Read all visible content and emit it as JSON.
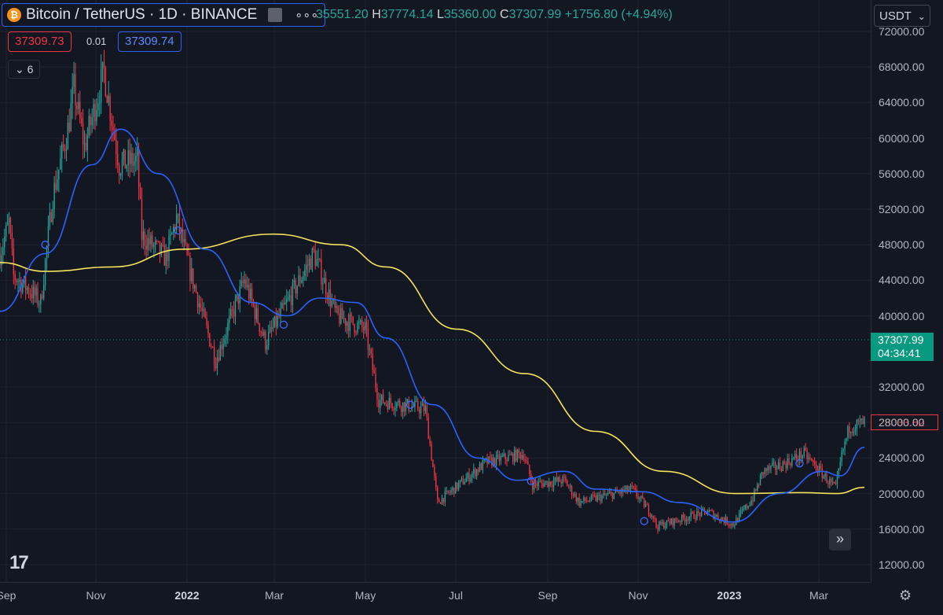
{
  "header": {
    "title": "Bitcoin / TetherUS · 1D · BINANCE",
    "coin_symbol": "₿",
    "more": "∘∘∘",
    "ohlc": {
      "o_label": "",
      "o": "35551.20",
      "h_label": "H",
      "h": "37774.14",
      "l_label": "L",
      "l": "35360.00",
      "c_label": "C",
      "c": "37307.99",
      "change": "+1756.80 (+4.94%)"
    }
  },
  "trade": {
    "sell": "37309.73",
    "spread": "0.01",
    "buy": "37309.74"
  },
  "indicators_count": "6",
  "currency": "USDT",
  "price_scale": {
    "labels": [
      "72000.00",
      "68000.00",
      "64000.00",
      "60000.00",
      "56000.00",
      "52000.00",
      "48000.00",
      "44000.00",
      "40000.00",
      "32000.00",
      "28000.00",
      "24000.00",
      "20000.00",
      "16000.00",
      "12000.00"
    ]
  },
  "last_price": {
    "price": "37307.99",
    "countdown": "04:34:41"
  },
  "alert_price": "28033.82",
  "time_scale": {
    "labels": [
      "Sep",
      "Nov",
      "2022",
      "Mar",
      "May",
      "Jul",
      "Sep",
      "Nov",
      "2023",
      "Mar"
    ],
    "bold": [
      false,
      false,
      true,
      false,
      false,
      false,
      false,
      false,
      true,
      false
    ]
  },
  "logo_text": "17",
  "scroll_icon": "»",
  "gear_icon": "⚙",
  "colors": {
    "up": "#26a69a",
    "down": "#f23645",
    "ma_fast": "#2962ff",
    "ma_slow": "#f5e15a",
    "background": "#131722",
    "grid": "#1f2330"
  },
  "chart_data": {
    "type": "candlestick",
    "symbol": "BTCUSDT",
    "interval": "1D",
    "ylim": [
      10000,
      73000
    ],
    "x_range": [
      "2021-09-01",
      "2023-03-28"
    ],
    "grid": true,
    "close_anchors": [
      [
        "2021-09-01",
        47000
      ],
      [
        "2021-09-07",
        50500
      ],
      [
        "2021-09-10",
        44500
      ],
      [
        "2021-09-20",
        43000
      ],
      [
        "2021-09-28",
        41500
      ],
      [
        "2021-10-06",
        53500
      ],
      [
        "2021-10-16",
        61000
      ],
      [
        "2021-10-20",
        65500
      ],
      [
        "2021-10-27",
        59000
      ],
      [
        "2021-11-09",
        67500
      ],
      [
        "2021-11-19",
        57000
      ],
      [
        "2021-12-01",
        57500
      ],
      [
        "2021-12-04",
        49000
      ],
      [
        "2021-12-20",
        46500
      ],
      [
        "2021-12-27",
        51000
      ],
      [
        "2022-01-05",
        45000
      ],
      [
        "2022-01-22",
        35000
      ],
      [
        "2022-02-10",
        44000
      ],
      [
        "2022-02-24",
        37000
      ],
      [
        "2022-03-28",
        47000
      ],
      [
        "2022-04-12",
        40000
      ],
      [
        "2022-05-01",
        38500
      ],
      [
        "2022-05-10",
        30500
      ],
      [
        "2022-06-10",
        29500
      ],
      [
        "2022-06-18",
        19000
      ],
      [
        "2022-07-20",
        23500
      ],
      [
        "2022-08-14",
        24500
      ],
      [
        "2022-08-20",
        21000
      ],
      [
        "2022-09-10",
        21500
      ],
      [
        "2022-09-20",
        19000
      ],
      [
        "2022-10-25",
        20500
      ],
      [
        "2022-11-08",
        17500
      ],
      [
        "2022-11-10",
        16300
      ],
      [
        "2022-12-14",
        18000
      ],
      [
        "2022-12-31",
        16500
      ],
      [
        "2023-01-13",
        19500
      ],
      [
        "2023-01-20",
        22500
      ],
      [
        "2023-02-01",
        23200
      ],
      [
        "2023-02-16",
        24500
      ],
      [
        "2023-03-09",
        20500
      ],
      [
        "2023-03-13",
        24300
      ],
      [
        "2023-03-18",
        27500
      ],
      [
        "2023-03-28",
        28000
      ]
    ],
    "ma_slow": {
      "period": 200,
      "points": [
        [
          "2021-09-01",
          46000
        ],
        [
          "2021-10-01",
          45000
        ],
        [
          "2021-11-15",
          45500
        ],
        [
          "2022-01-01",
          47500
        ],
        [
          "2022-03-01",
          49200
        ],
        [
          "2022-04-15",
          48000
        ],
        [
          "2022-05-15",
          45500
        ],
        [
          "2022-07-01",
          38500
        ],
        [
          "2022-08-15",
          33500
        ],
        [
          "2022-10-01",
          27000
        ],
        [
          "2022-11-15",
          22500
        ],
        [
          "2023-01-01",
          20000
        ],
        [
          "2023-02-15",
          20100
        ],
        [
          "2023-03-10",
          20000
        ],
        [
          "2023-03-28",
          20700
        ]
      ]
    },
    "ma_fast": {
      "period": 50,
      "points": [
        [
          "2021-09-01",
          40500
        ],
        [
          "2021-10-01",
          47000
        ],
        [
          "2021-11-01",
          57000
        ],
        [
          "2021-11-20",
          61000
        ],
        [
          "2021-12-15",
          56000
        ],
        [
          "2022-01-15",
          47500
        ],
        [
          "2022-02-15",
          41500
        ],
        [
          "2022-03-10",
          40000
        ],
        [
          "2022-04-01",
          42000
        ],
        [
          "2022-04-25",
          41500
        ],
        [
          "2022-05-15",
          37500
        ],
        [
          "2022-06-15",
          30000
        ],
        [
          "2022-07-15",
          24000
        ],
        [
          "2022-08-10",
          21500
        ],
        [
          "2022-09-10",
          22500
        ],
        [
          "2022-10-01",
          20500
        ],
        [
          "2022-11-01",
          20200
        ],
        [
          "2022-11-25",
          19000
        ],
        [
          "2022-12-31",
          16800
        ],
        [
          "2023-01-31",
          20000
        ],
        [
          "2023-02-28",
          22500
        ],
        [
          "2023-03-12",
          22000
        ],
        [
          "2023-03-28",
          25200
        ]
      ]
    },
    "markers": [
      [
        "2021-10-01",
        48000
      ],
      [
        "2021-12-28",
        49600
      ],
      [
        "2022-03-08",
        39000
      ],
      [
        "2022-05-31",
        30000
      ],
      [
        "2022-08-19",
        21400
      ],
      [
        "2022-11-02",
        16900
      ],
      [
        "2023-02-13",
        23400
      ]
    ],
    "last_price_line": 37307.99
  }
}
